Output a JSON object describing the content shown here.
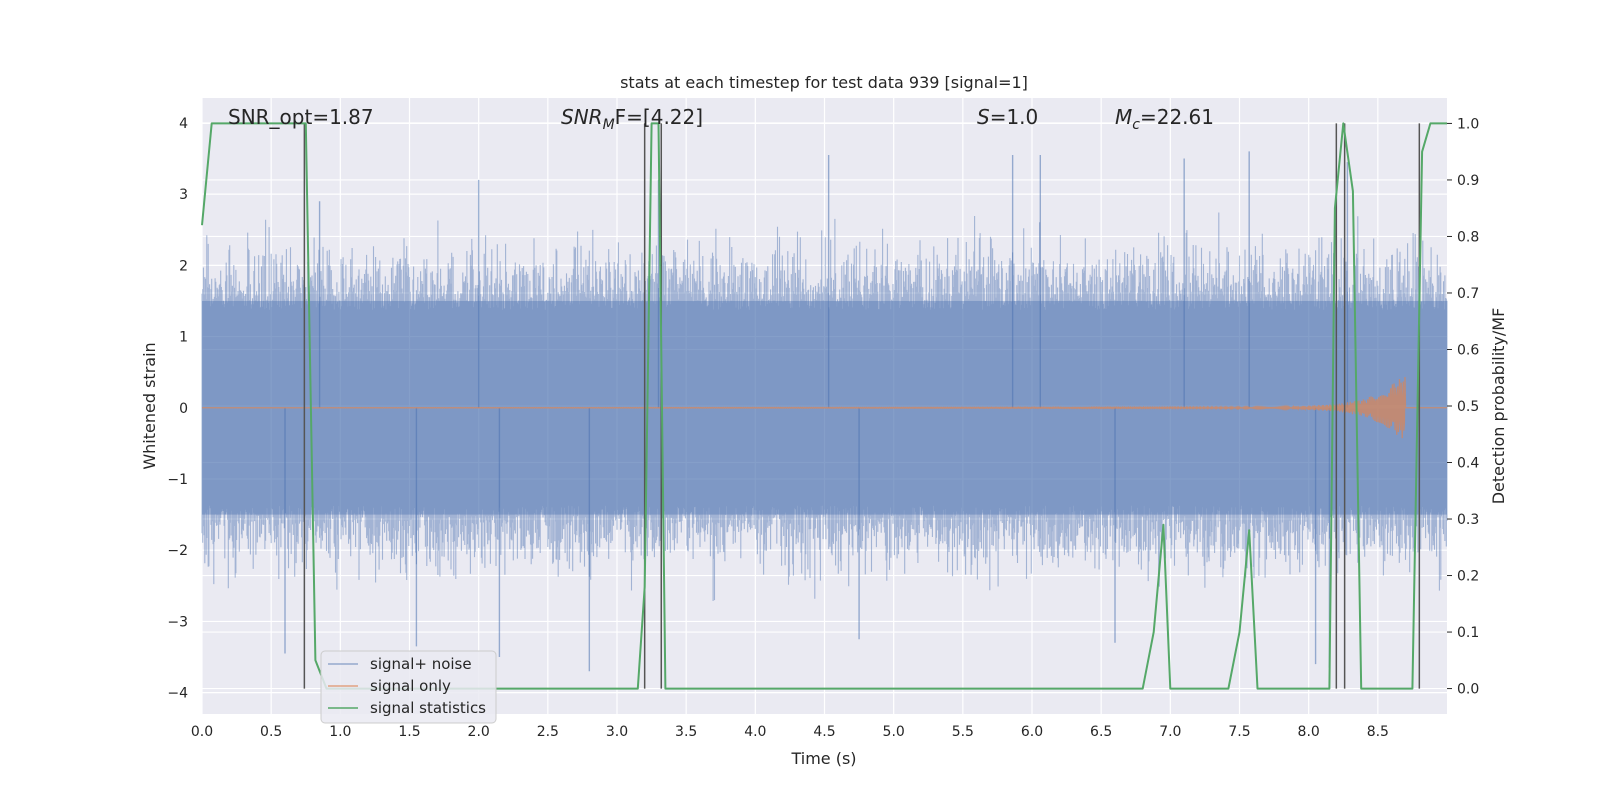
{
  "chart_data": {
    "type": "line",
    "title": "stats at each timestep for test data 939 [signal=1]",
    "xlabel": "Time (s)",
    "ylabel_left": "Whitened strain",
    "ylabel_right": "Detection probability/MF",
    "xlim": [
      0.0,
      9.0
    ],
    "ylim_left": [
      -4.3,
      4.35
    ],
    "ylim_right": [
      -0.045,
      1.045
    ],
    "x_ticks": [
      "0.0",
      "0.5",
      "1.0",
      "1.5",
      "2.0",
      "2.5",
      "3.0",
      "3.5",
      "4.0",
      "4.5",
      "5.0",
      "5.5",
      "6.0",
      "6.5",
      "7.0",
      "7.5",
      "8.0",
      "8.5"
    ],
    "y_ticks_left": [
      "4",
      "3",
      "2",
      "1",
      "0",
      "−1",
      "−2",
      "−3",
      "−4"
    ],
    "y_ticks_right": [
      "1.0",
      "0.9",
      "0.8",
      "0.7",
      "0.6",
      "0.5",
      "0.4",
      "0.3",
      "0.2",
      "0.1",
      "0.0"
    ],
    "grid": true,
    "legend_position": "lower-left",
    "annotations": {
      "snr_opt": "SNR_opt=1.87",
      "snr_mf_italic": "SNR",
      "snr_mf_sub": "M",
      "snr_mf_rest": "F=[4.22]",
      "s_italic": "S",
      "s_rest": "=1.0",
      "mc_italic": "M",
      "mc_sub": "c",
      "mc_rest": "=22.61"
    },
    "series": [
      {
        "name": "signal+ noise",
        "color": "#4C72B0",
        "description": "dense whitened strain noise, amplitude envelope ~[-2.5, 2.5] with spikes up to ~3.6 and down to ~-3.7",
        "envelope": [
          2.5,
          -2.5
        ],
        "spikes_up": [
          [
            4.53,
            3.55
          ],
          [
            5.86,
            3.55
          ],
          [
            6.06,
            3.55
          ],
          [
            7.1,
            3.5
          ],
          [
            7.57,
            3.6
          ],
          [
            8.28,
            3.45
          ],
          [
            2.0,
            3.2
          ],
          [
            0.85,
            2.9
          ],
          [
            3.3,
            3.2
          ]
        ],
        "spikes_down": [
          [
            0.6,
            -3.45
          ],
          [
            1.55,
            -3.35
          ],
          [
            2.8,
            -3.7
          ],
          [
            2.15,
            -3.5
          ],
          [
            8.05,
            -3.6
          ],
          [
            8.15,
            -3.65
          ],
          [
            4.75,
            -3.25
          ],
          [
            6.6,
            -3.3
          ]
        ]
      },
      {
        "name": "signal only",
        "color": "#DD8452",
        "description": "chirp signal, near zero, growing to ~±0.4 amplitude near 8.7 s",
        "x": [
          0.0,
          7.8,
          8.2,
          8.4,
          8.55,
          8.65,
          8.7
        ],
        "amplitude": [
          0.0,
          0.01,
          0.05,
          0.12,
          0.25,
          0.4,
          0.45
        ]
      },
      {
        "name": "signal statistics",
        "color": "#55A868",
        "x": [
          0.0,
          0.07,
          0.1,
          0.15,
          0.7,
          0.73,
          0.75,
          0.82,
          0.9,
          3.1,
          3.15,
          3.2,
          3.25,
          3.3,
          3.35,
          6.8,
          6.88,
          6.95,
          7.0,
          7.42,
          7.5,
          7.57,
          7.63,
          8.15,
          8.19,
          8.25,
          8.32,
          8.38,
          8.75,
          8.82,
          8.88,
          9.0
        ],
        "y": [
          0.82,
          1.0,
          1.0,
          1.0,
          1.0,
          1.0,
          1.0,
          0.05,
          0.0,
          0.0,
          0.0,
          0.18,
          1.0,
          1.0,
          0.0,
          0.0,
          0.1,
          0.29,
          0.0,
          0.0,
          0.1,
          0.28,
          0.0,
          0.0,
          0.85,
          1.0,
          0.88,
          0.0,
          0.0,
          0.95,
          1.0,
          1.0
        ]
      }
    ],
    "markers": {
      "color": "#555555",
      "description": "vertical lines marking detected triggers",
      "x": [
        0.74,
        3.2,
        3.32,
        8.2,
        8.26,
        8.8
      ]
    }
  }
}
